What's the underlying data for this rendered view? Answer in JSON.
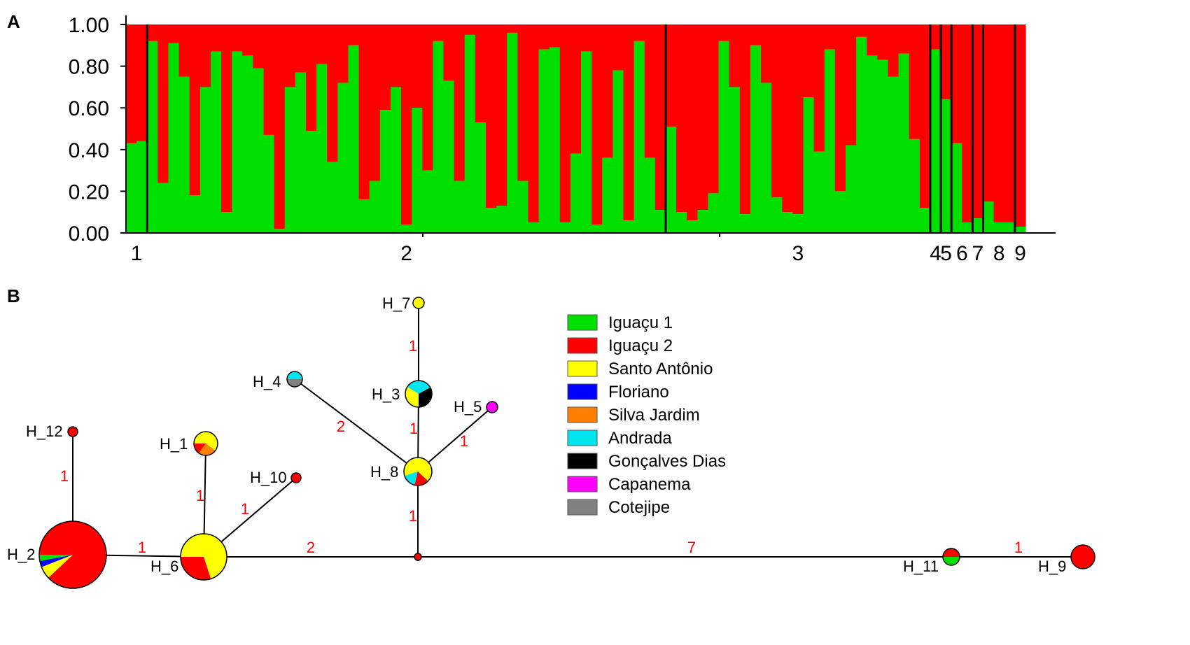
{
  "panels": {
    "a": "A",
    "b": "B"
  },
  "colors": {
    "cluster1": "#ff0000",
    "cluster2": "#00e000",
    "divider": "#000000",
    "edge_label": "#ff0000"
  },
  "chart_data": {
    "type": "bar",
    "stacked": true,
    "ylim": [
      0,
      1
    ],
    "yticks": [
      "0.00",
      "0.20",
      "0.40",
      "0.60",
      "0.80",
      "1.00"
    ],
    "populations": [
      {
        "label": "1",
        "values": [
          0.43,
          0.44
        ]
      },
      {
        "label": "2",
        "values": [
          0.92,
          0.24,
          0.91,
          0.75,
          0.18,
          0.7,
          0.87,
          0.1,
          0.87,
          0.85,
          0.79,
          0.47,
          0.02,
          0.7,
          0.77,
          0.49,
          0.81,
          0.34,
          0.72,
          0.9,
          0.16,
          0.25,
          0.59,
          0.7,
          0.04,
          0.6,
          0.3,
          0.92,
          0.73,
          0.25,
          0.95,
          0.53,
          0.12,
          0.13,
          0.96,
          0.25,
          0.05,
          0.88,
          0.89,
          0.05,
          0.38,
          0.87,
          0.04,
          0.36,
          0.78,
          0.06,
          0.92,
          0.36,
          0.11
        ]
      },
      {
        "label": "3",
        "values": [
          0.51,
          0.1,
          0.06,
          0.11,
          0.19,
          0.92,
          0.7,
          0.09,
          0.9,
          0.72,
          0.17,
          0.1,
          0.09,
          0.65,
          0.39,
          0.88,
          0.2,
          0.42,
          0.94,
          0.85,
          0.83,
          0.75,
          0.86,
          0.45,
          0.12
        ]
      },
      {
        "label": "4",
        "values": [
          0.88
        ]
      },
      {
        "label": "5",
        "values": [
          0.64
        ]
      },
      {
        "label": "6",
        "values": [
          0.43,
          0.05
        ]
      },
      {
        "label": "7",
        "values": [
          0.07
        ]
      },
      {
        "label": "8",
        "values": [
          0.15,
          0.05,
          0.05
        ]
      },
      {
        "label": "9",
        "values": [
          0.03
        ]
      }
    ]
  },
  "network": {
    "legend": [
      {
        "name": "Iguaçu 1",
        "color": "#00e000"
      },
      {
        "name": "Iguaçu 2",
        "color": "#ff0000"
      },
      {
        "name": "Santo Antônio",
        "color": "#ffff00"
      },
      {
        "name": "Floriano",
        "color": "#0000ff"
      },
      {
        "name": "Silva Jardim",
        "color": "#ff8000"
      },
      {
        "name": "Andrada",
        "color": "#00e5ee"
      },
      {
        "name": "Gonçalves Dias",
        "color": "#000000"
      },
      {
        "name": "Capanema",
        "color": "#ff00ff"
      },
      {
        "name": "Cotejipe",
        "color": "#808080"
      }
    ],
    "haplotypes": [
      {
        "id": "H_2",
        "label": "H_2",
        "slices": [
          [
            "Iguaçu 2",
            0.88
          ],
          [
            "Santo Antônio",
            0.06
          ],
          [
            "Floriano",
            0.03
          ],
          [
            "Iguaçu 1",
            0.03
          ]
        ]
      },
      {
        "id": "H_6",
        "label": "H_6",
        "slices": [
          [
            "Santo Antônio",
            0.7
          ],
          [
            "Iguaçu 2",
            0.3
          ]
        ]
      },
      {
        "id": "H_1",
        "label": "H_1",
        "slices": [
          [
            "Santo Antônio",
            0.6
          ],
          [
            "Silva Jardim",
            0.25
          ],
          [
            "Iguaçu 2",
            0.15
          ]
        ]
      },
      {
        "id": "H_12",
        "label": "H_12",
        "slices": [
          [
            "Iguaçu 2",
            1.0
          ]
        ]
      },
      {
        "id": "H_10",
        "label": "H_10",
        "slices": [
          [
            "Iguaçu 2",
            1.0
          ]
        ]
      },
      {
        "id": "H_8",
        "label": "H_8",
        "slices": [
          [
            "Santo Antônio",
            0.67
          ],
          [
            "Iguaçu 2",
            0.17
          ],
          [
            "Andrada",
            0.16
          ]
        ]
      },
      {
        "id": "H_3",
        "label": "H_3",
        "slices": [
          [
            "Santo Antônio",
            0.34
          ],
          [
            "Andrada",
            0.33
          ],
          [
            "Gonçalves Dias",
            0.33
          ]
        ]
      },
      {
        "id": "H_7",
        "label": "H_7",
        "slices": [
          [
            "Santo Antônio",
            1.0
          ]
        ]
      },
      {
        "id": "H_4",
        "label": "H_4",
        "slices": [
          [
            "Andrada",
            0.5
          ],
          [
            "Cotejipe",
            0.5
          ]
        ]
      },
      {
        "id": "H_5",
        "label": "H_5",
        "slices": [
          [
            "Capanema",
            1.0
          ]
        ]
      },
      {
        "id": "H_11",
        "label": "H_11",
        "slices": [
          [
            "Iguaçu 2",
            0.5
          ],
          [
            "Iguaçu 1",
            0.5
          ]
        ]
      },
      {
        "id": "H_9",
        "label": "H_9",
        "slices": [
          [
            "Iguaçu 2",
            1.0
          ]
        ]
      },
      {
        "id": "median",
        "label": "",
        "slices": [
          [
            "Iguaçu 2",
            1.0
          ]
        ]
      }
    ],
    "edges": [
      {
        "from": "H_2",
        "to": "H_12",
        "steps": "1"
      },
      {
        "from": "H_2",
        "to": "H_6",
        "steps": "1"
      },
      {
        "from": "H_6",
        "to": "H_1",
        "steps": "1"
      },
      {
        "from": "H_6",
        "to": "H_10",
        "steps": "1"
      },
      {
        "from": "H_6",
        "to": "median",
        "steps": "2"
      },
      {
        "from": "median",
        "to": "H_8",
        "steps": "1"
      },
      {
        "from": "H_8",
        "to": "H_3",
        "steps": "1"
      },
      {
        "from": "H_3",
        "to": "H_7",
        "steps": "1"
      },
      {
        "from": "H_8",
        "to": "H_4",
        "steps": "2"
      },
      {
        "from": "H_8",
        "to": "H_5",
        "steps": "1"
      },
      {
        "from": "median",
        "to": "H_11",
        "steps": "7"
      },
      {
        "from": "H_11",
        "to": "H_9",
        "steps": "1"
      }
    ]
  }
}
